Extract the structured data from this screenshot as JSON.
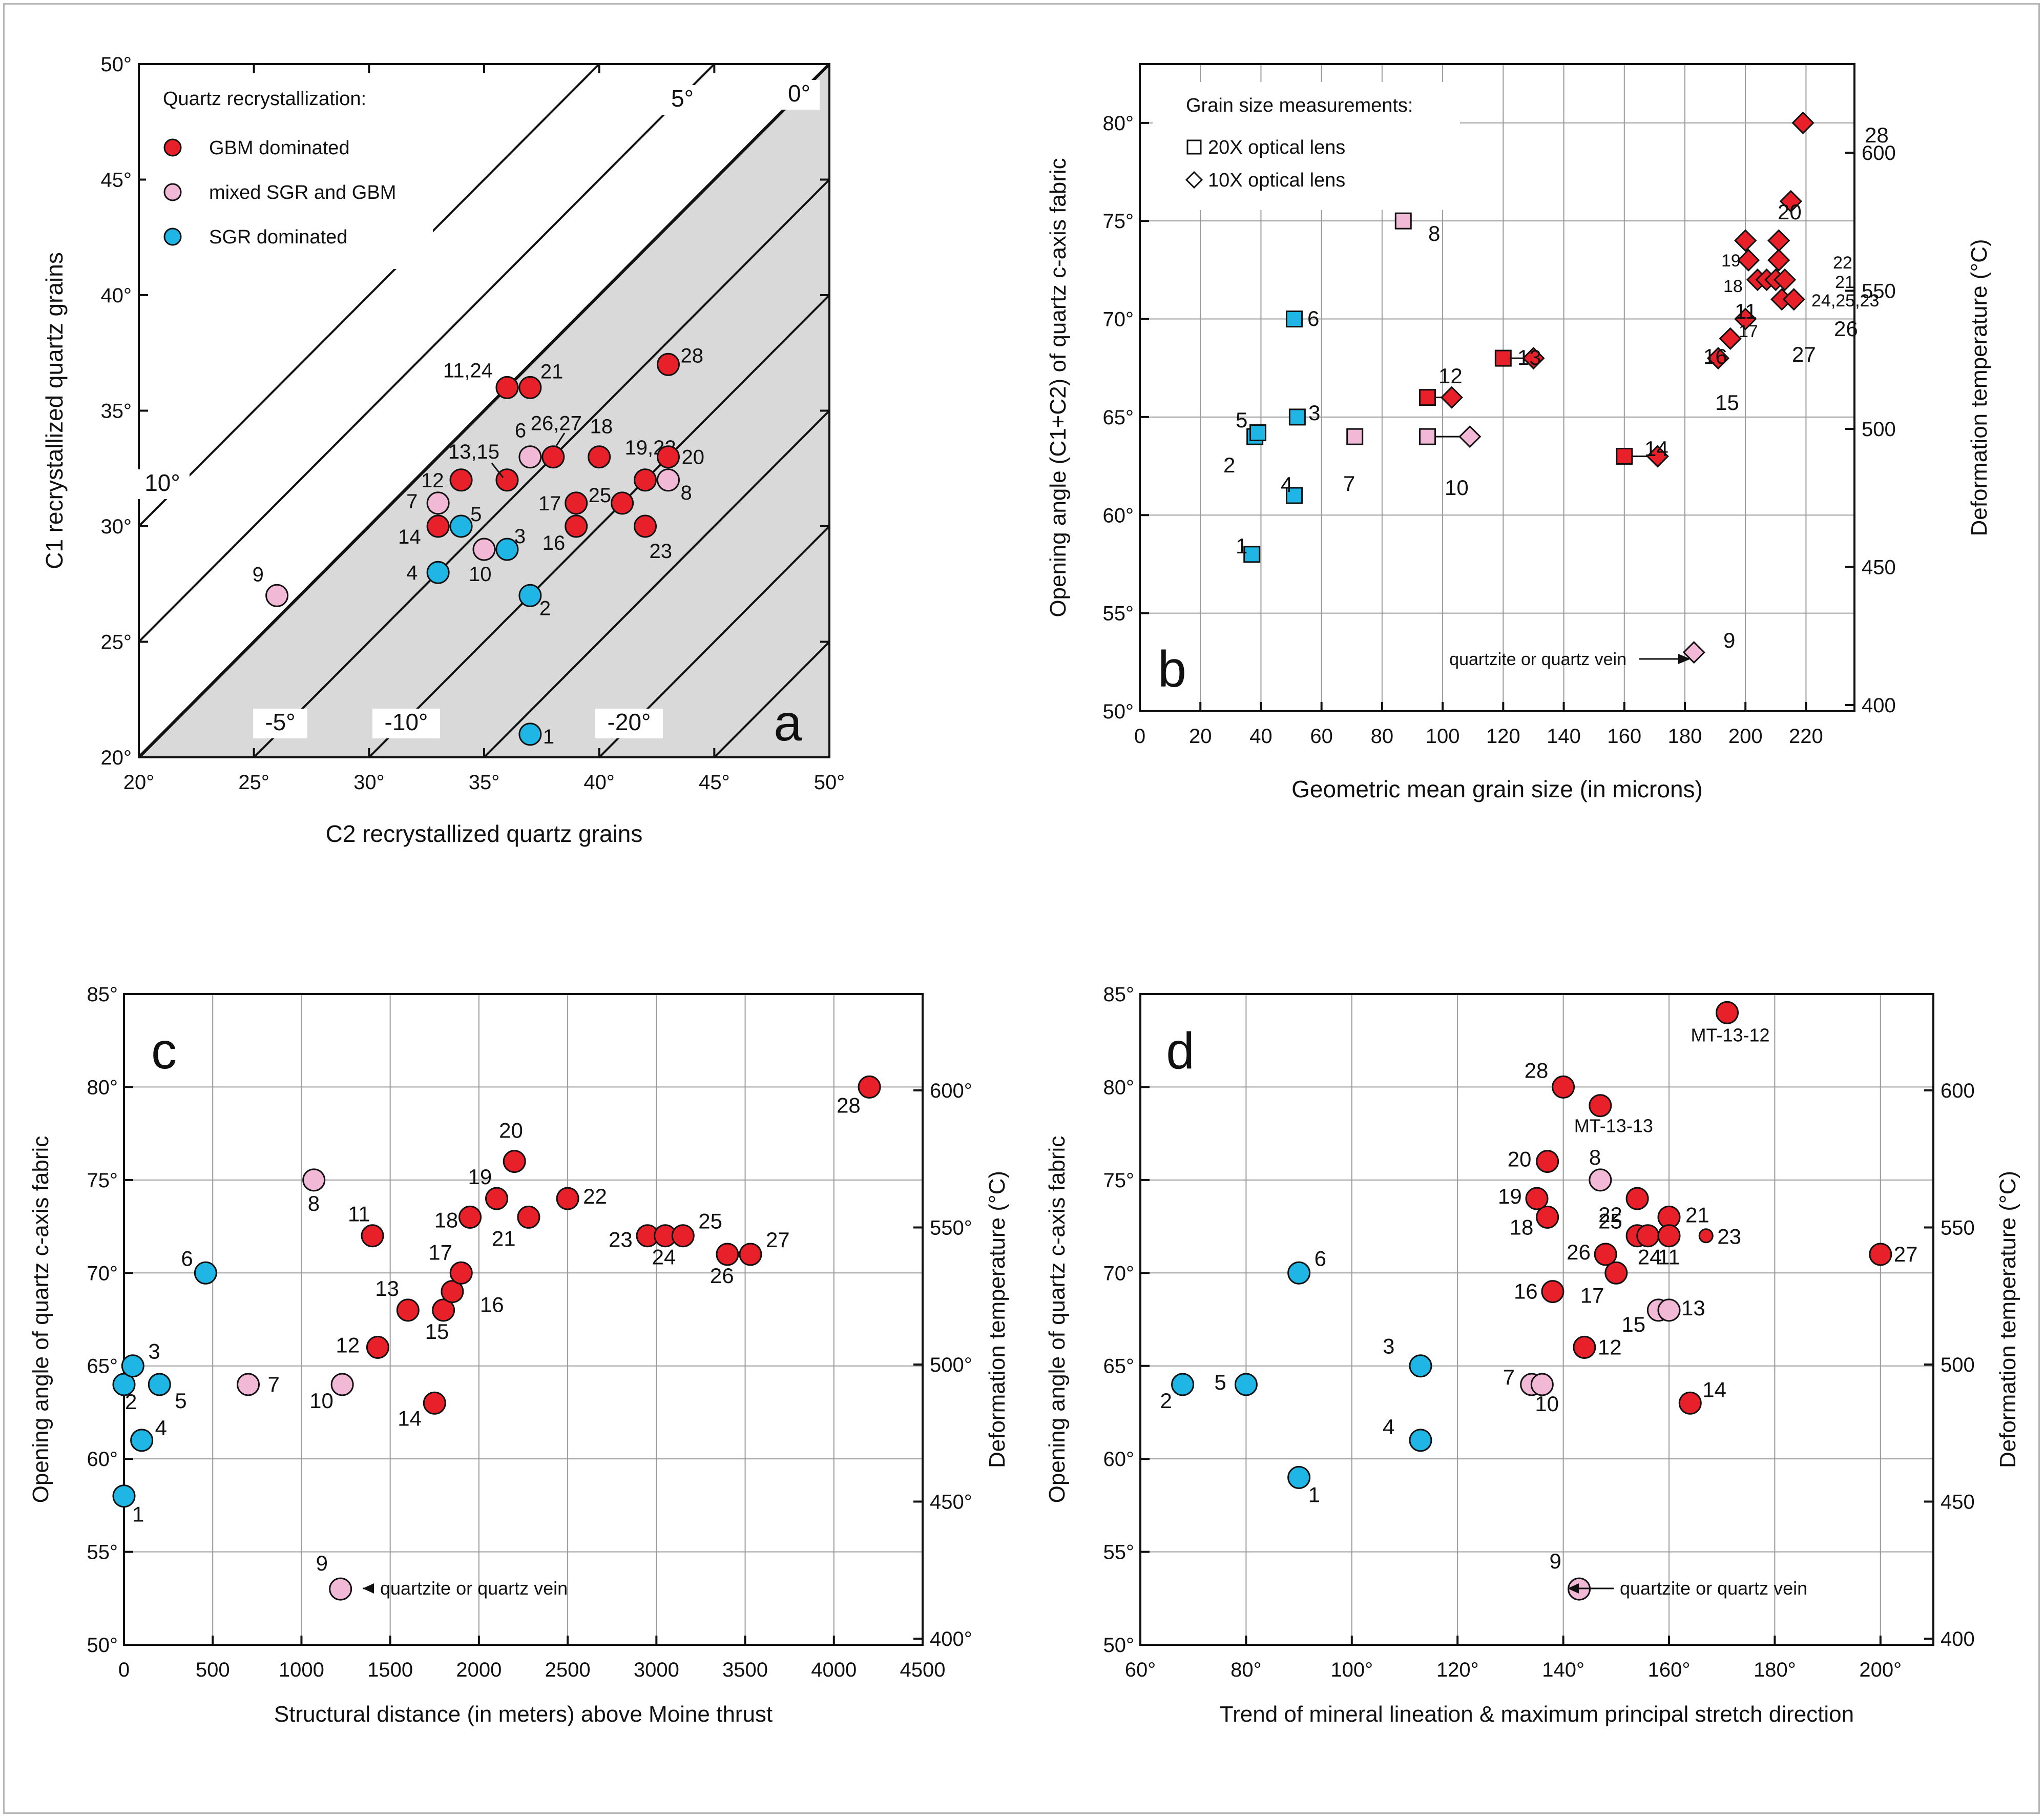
{
  "colors": {
    "gbm": "#e8202a",
    "mixed": "#f2b9d6",
    "sgr": "#1fb6e6",
    "grid": "#9a9a9a",
    "shade": "#d9d9d9",
    "label_blue": "#1f7fbf"
  },
  "chart_data": [
    {
      "id": "a",
      "type": "scatter",
      "panel_letter": "a",
      "title": "",
      "xlabel": "C2 recrystallized quartz grains",
      "ylabel": "C1 recrystallized quartz grains",
      "xlim": [
        20,
        50
      ],
      "ylim": [
        20,
        50
      ],
      "x_ticks": [
        20,
        25,
        30,
        35,
        40,
        45,
        50
      ],
      "y_ticks": [
        20,
        25,
        30,
        35,
        40,
        45,
        50
      ],
      "x_tick_labels": [
        "20°",
        "25°",
        "30°",
        "35°",
        "40°",
        "45°",
        "50°"
      ],
      "y_tick_labels": [
        "20°",
        "25°",
        "30°",
        "35°",
        "40°",
        "45°",
        "50°"
      ],
      "grid": false,
      "legend_title": "Quartz recrystallization:",
      "legend": [
        {
          "label": "GBM dominated",
          "cls": "gbm"
        },
        {
          "label": "mixed SGR and GBM",
          "cls": "mixed"
        },
        {
          "label": "SGR dominated",
          "cls": "sgr"
        }
      ],
      "diagonals": [
        {
          "offset": 10,
          "label": "10°"
        },
        {
          "offset": 5,
          "label": "5°"
        },
        {
          "offset": 0,
          "label": "0°"
        },
        {
          "offset": -5,
          "label": "-5°"
        },
        {
          "offset": -10,
          "label": "-10°"
        },
        {
          "offset": -15,
          "label": ""
        },
        {
          "offset": -20,
          "label": "-20°"
        },
        {
          "offset": -25,
          "label": ""
        }
      ],
      "points": [
        {
          "id": "1",
          "x": 37,
          "y": 21,
          "cls": "sgr"
        },
        {
          "id": "2",
          "x": 37,
          "y": 27,
          "cls": "sgr"
        },
        {
          "id": "3",
          "x": 36,
          "y": 29,
          "cls": "sgr"
        },
        {
          "id": "4",
          "x": 33,
          "y": 28,
          "cls": "sgr"
        },
        {
          "id": "5",
          "x": 34,
          "y": 30,
          "cls": "sgr"
        },
        {
          "id": "6",
          "x": 37,
          "y": 33,
          "cls": "mixed"
        },
        {
          "id": "7",
          "x": 33,
          "y": 31,
          "cls": "mixed"
        },
        {
          "id": "8",
          "x": 43,
          "y": 32,
          "cls": "mixed"
        },
        {
          "id": "9",
          "x": 26,
          "y": 27,
          "cls": "mixed"
        },
        {
          "id": "10",
          "x": 35,
          "y": 29,
          "cls": "mixed"
        },
        {
          "id": "11,24",
          "x": 36,
          "y": 36,
          "cls": "gbm"
        },
        {
          "id": "21",
          "x": 37,
          "y": 36,
          "cls": "gbm"
        },
        {
          "id": "12",
          "x": 34,
          "y": 32,
          "cls": "gbm"
        },
        {
          "id": "13,15",
          "x": 36,
          "y": 32,
          "cls": "gbm"
        },
        {
          "id": "14",
          "x": 33,
          "y": 30,
          "cls": "gbm"
        },
        {
          "id": "26,27",
          "x": 38,
          "y": 33,
          "cls": "gbm"
        },
        {
          "id": "18",
          "x": 40,
          "y": 33,
          "cls": "gbm"
        },
        {
          "id": "17",
          "x": 39,
          "y": 31,
          "cls": "gbm"
        },
        {
          "id": "16",
          "x": 39,
          "y": 30,
          "cls": "gbm"
        },
        {
          "id": "25",
          "x": 41,
          "y": 31,
          "cls": "gbm"
        },
        {
          "id": "19,22",
          "x": 42,
          "y": 32,
          "cls": "gbm"
        },
        {
          "id": "20",
          "x": 43,
          "y": 33,
          "cls": "gbm"
        },
        {
          "id": "23",
          "x": 42,
          "y": 30,
          "cls": "gbm"
        },
        {
          "id": "28",
          "x": 43,
          "y": 37,
          "cls": "gbm"
        }
      ]
    },
    {
      "id": "b",
      "type": "scatter",
      "panel_letter": "b",
      "title": "",
      "xlabel": "Geometric mean grain size (in microns)",
      "ylabel": "Opening angle (C1+C2) of quartz c-axis fabric",
      "y2label": "Deformation temperature (°C)",
      "xlim": [
        0,
        236
      ],
      "ylim": [
        50,
        83
      ],
      "x_ticks": [
        0,
        20,
        40,
        60,
        80,
        100,
        120,
        140,
        160,
        180,
        200,
        220
      ],
      "x_tick_labels": [
        "0",
        "20",
        "40",
        "60",
        "80",
        "100",
        "120",
        "140",
        "160",
        "180",
        "200",
        "220"
      ],
      "y_ticks": [
        50,
        55,
        60,
        65,
        70,
        75,
        80
      ],
      "y_tick_labels": [
        "50°",
        "55°",
        "60°",
        "65°",
        "70°",
        "75°",
        "80°"
      ],
      "y2_ticks": [
        400,
        450,
        500,
        550,
        600
      ],
      "y2_tick_labels": [
        "400",
        "450",
        "500",
        "550",
        "600"
      ],
      "grid": true,
      "legend_title": "Grain size measurements:",
      "legend": [
        {
          "label": "20X optical lens",
          "marker": "square"
        },
        {
          "label": "10X optical lens",
          "marker": "diamond"
        }
      ],
      "annotation": "quartzite or quartz vein",
      "squares": [
        {
          "id": "1",
          "x": 37,
          "y": 58,
          "cls": "sgr"
        },
        {
          "id": "2",
          "x": 38,
          "y": 64,
          "cls": "sgr"
        },
        {
          "id": "5",
          "x": 39,
          "y": 64.2,
          "cls": "sgr"
        },
        {
          "id": "3",
          "x": 52,
          "y": 65,
          "cls": "sgr"
        },
        {
          "id": "4",
          "x": 51,
          "y": 61,
          "cls": "sgr"
        },
        {
          "id": "6",
          "x": 51,
          "y": 70,
          "cls": "sgr"
        },
        {
          "id": "7",
          "x": 71,
          "y": 64,
          "cls": "mixed"
        },
        {
          "id": "8",
          "x": 87,
          "y": 75,
          "cls": "mixed"
        },
        {
          "id": "10",
          "x": 95,
          "y": 64,
          "cls": "mixed"
        },
        {
          "id": "12",
          "x": 95,
          "y": 66,
          "cls": "gbm"
        },
        {
          "id": "13",
          "x": 120,
          "y": 68,
          "cls": "gbm"
        },
        {
          "id": "14",
          "x": 160,
          "y": 63,
          "cls": "gbm"
        }
      ],
      "diamonds": [
        {
          "id": "10",
          "x": 109,
          "y": 64,
          "cls": "mixed"
        },
        {
          "id": "12",
          "x": 103,
          "y": 66,
          "cls": "gbm"
        },
        {
          "id": "13",
          "x": 130,
          "y": 68,
          "cls": "gbm"
        },
        {
          "id": "14",
          "x": 171,
          "y": 63,
          "cls": "gbm"
        },
        {
          "id": "9",
          "x": 183,
          "y": 53,
          "cls": "mixed"
        },
        {
          "id": "15",
          "x": 191,
          "y": 68,
          "cls": "gbm"
        },
        {
          "id": "16",
          "x": 195,
          "y": 69,
          "cls": "gbm"
        },
        {
          "id": "17",
          "x": 200,
          "y": 70,
          "cls": "gbm"
        },
        {
          "id": "19",
          "x": 200,
          "y": 74,
          "cls": "gbm"
        },
        {
          "id": "18",
          "x": 201,
          "y": 73,
          "cls": "gbm"
        },
        {
          "id": "11",
          "x": 204,
          "y": 72,
          "cls": "gbm"
        },
        {
          "id": "x1",
          "x": 207,
          "y": 72,
          "cls": "gbm"
        },
        {
          "id": "x2",
          "x": 210,
          "y": 72,
          "cls": "gbm"
        },
        {
          "id": "22",
          "x": 211,
          "y": 74,
          "cls": "gbm"
        },
        {
          "id": "21",
          "x": 211,
          "y": 73,
          "cls": "gbm"
        },
        {
          "id": "24,25,23",
          "x": 213,
          "y": 72,
          "cls": "gbm"
        },
        {
          "id": "27",
          "x": 212,
          "y": 71,
          "cls": "gbm"
        },
        {
          "id": "26",
          "x": 216,
          "y": 71,
          "cls": "gbm"
        },
        {
          "id": "20",
          "x": 215,
          "y": 76,
          "cls": "gbm"
        },
        {
          "id": "28",
          "x": 219,
          "y": 80,
          "cls": "gbm"
        }
      ],
      "connectors": [
        {
          "from": [
            95,
            64
          ],
          "to": [
            109,
            64
          ]
        },
        {
          "from": [
            95,
            66
          ],
          "to": [
            103,
            66
          ]
        },
        {
          "from": [
            120,
            68
          ],
          "to": [
            130,
            68
          ]
        },
        {
          "from": [
            160,
            63
          ],
          "to": [
            171,
            63
          ]
        }
      ]
    },
    {
      "id": "c",
      "type": "scatter",
      "panel_letter": "c",
      "title": "",
      "xlabel": "Structural distance (in meters) above Moine thrust",
      "ylabel": "Opening angle of quartz c-axis fabric",
      "y2label": "Deformation temperature (°C)",
      "xlim": [
        0,
        4500
      ],
      "ylim": [
        50,
        85
      ],
      "x_ticks": [
        0,
        500,
        1000,
        1500,
        2000,
        2500,
        3000,
        3500,
        4000,
        4500
      ],
      "x_tick_labels": [
        "0",
        "500",
        "1000",
        "1500",
        "2000",
        "2500",
        "3000",
        "3500",
        "4000",
        "4500"
      ],
      "y_ticks": [
        50,
        55,
        60,
        65,
        70,
        75,
        80,
        85
      ],
      "y_tick_labels": [
        "50°",
        "55°",
        "60°",
        "65°",
        "70°",
        "75°",
        "80°",
        "85°"
      ],
      "y2_ticks": [
        400,
        450,
        500,
        550,
        600
      ],
      "y2_tick_labels": [
        "400°",
        "450°",
        "500°",
        "550°",
        "600°"
      ],
      "grid": true,
      "annotation": "quartzite or quartz vein",
      "points": [
        {
          "id": "1",
          "x": 0,
          "y": 58,
          "cls": "sgr"
        },
        {
          "id": "2",
          "x": 0,
          "y": 64,
          "cls": "sgr"
        },
        {
          "id": "3",
          "x": 50,
          "y": 65,
          "cls": "sgr"
        },
        {
          "id": "4",
          "x": 100,
          "y": 61,
          "cls": "sgr"
        },
        {
          "id": "5",
          "x": 200,
          "y": 64,
          "cls": "sgr"
        },
        {
          "id": "6",
          "x": 460,
          "y": 70,
          "cls": "sgr"
        },
        {
          "id": "7",
          "x": 700,
          "y": 64,
          "cls": "mixed"
        },
        {
          "id": "8",
          "x": 1070,
          "y": 75,
          "cls": "mixed"
        },
        {
          "id": "9",
          "x": 1220,
          "y": 53,
          "cls": "mixed"
        },
        {
          "id": "10",
          "x": 1230,
          "y": 64,
          "cls": "mixed"
        },
        {
          "id": "11",
          "x": 1400,
          "y": 72,
          "cls": "gbm"
        },
        {
          "id": "12",
          "x": 1430,
          "y": 66,
          "cls": "gbm"
        },
        {
          "id": "13",
          "x": 1600,
          "y": 68,
          "cls": "gbm"
        },
        {
          "id": "14",
          "x": 1750,
          "y": 63,
          "cls": "gbm"
        },
        {
          "id": "15",
          "x": 1800,
          "y": 68,
          "cls": "gbm"
        },
        {
          "id": "16",
          "x": 1850,
          "y": 69,
          "cls": "gbm"
        },
        {
          "id": "17",
          "x": 1900,
          "y": 70,
          "cls": "gbm"
        },
        {
          "id": "18",
          "x": 1950,
          "y": 73,
          "cls": "gbm"
        },
        {
          "id": "19",
          "x": 2100,
          "y": 74,
          "cls": "gbm"
        },
        {
          "id": "20",
          "x": 2200,
          "y": 76,
          "cls": "gbm"
        },
        {
          "id": "21",
          "x": 2280,
          "y": 73,
          "cls": "gbm"
        },
        {
          "id": "22",
          "x": 2500,
          "y": 74,
          "cls": "gbm"
        },
        {
          "id": "23",
          "x": 2950,
          "y": 72,
          "cls": "gbm"
        },
        {
          "id": "24",
          "x": 3050,
          "y": 72,
          "cls": "gbm"
        },
        {
          "id": "25",
          "x": 3150,
          "y": 72,
          "cls": "gbm"
        },
        {
          "id": "26",
          "x": 3400,
          "y": 71,
          "cls": "gbm"
        },
        {
          "id": "27",
          "x": 3530,
          "y": 71,
          "cls": "gbm"
        },
        {
          "id": "28",
          "x": 4200,
          "y": 80,
          "cls": "gbm"
        }
      ]
    },
    {
      "id": "d",
      "type": "scatter",
      "panel_letter": "d",
      "title": "",
      "xlabel": "Trend of mineral lineation & maximum principal stretch direction",
      "ylabel": "Opening angle of quartz c-axis fabric",
      "y2label": "Deformation temperature (°C)",
      "xlim": [
        60,
        210
      ],
      "ylim": [
        50,
        85
      ],
      "x_ticks": [
        60,
        80,
        100,
        120,
        140,
        160,
        180,
        200
      ],
      "x_tick_labels": [
        "60°",
        "80°",
        "100°",
        "120°",
        "140°",
        "160°",
        "180°",
        "200°"
      ],
      "y_ticks": [
        50,
        55,
        60,
        65,
        70,
        75,
        80,
        85
      ],
      "y_tick_labels": [
        "50°",
        "55°",
        "60°",
        "65°",
        "70°",
        "75°",
        "80°",
        "85°"
      ],
      "y2_ticks": [
        400,
        450,
        500,
        550,
        600
      ],
      "y2_tick_labels": [
        "400",
        "450",
        "500",
        "550",
        "600"
      ],
      "grid": true,
      "annotation": "quartzite or quartz vein",
      "points": [
        {
          "id": "1",
          "x": 90,
          "y": 59,
          "cls": "sgr"
        },
        {
          "id": "2",
          "x": 68,
          "y": 64,
          "cls": "sgr"
        },
        {
          "id": "3",
          "x": 113,
          "y": 65,
          "cls": "sgr"
        },
        {
          "id": "4",
          "x": 113,
          "y": 61,
          "cls": "sgr"
        },
        {
          "id": "5",
          "x": 80,
          "y": 64,
          "cls": "sgr"
        },
        {
          "id": "6",
          "x": 90,
          "y": 70,
          "cls": "sgr"
        },
        {
          "id": "7",
          "x": 134,
          "y": 64,
          "cls": "mixed"
        },
        {
          "id": "10",
          "x": 136,
          "y": 64,
          "cls": "mixed"
        },
        {
          "id": "8",
          "x": 147,
          "y": 75,
          "cls": "mixed"
        },
        {
          "id": "9",
          "x": 143,
          "y": 53,
          "cls": "mixed"
        },
        {
          "id": "15",
          "x": 158,
          "y": 68,
          "cls": "mixed"
        },
        {
          "id": "13",
          "x": 160,
          "y": 68,
          "cls": "mixed"
        },
        {
          "id": "28",
          "x": 140,
          "y": 80,
          "cls": "gbm"
        },
        {
          "id": "MT-13-13",
          "x": 147,
          "y": 79,
          "cls": "gbm"
        },
        {
          "id": "MT-13-12",
          "x": 171,
          "y": 84,
          "cls": "gbm"
        },
        {
          "id": "20",
          "x": 137,
          "y": 76,
          "cls": "gbm"
        },
        {
          "id": "19",
          "x": 135,
          "y": 74,
          "cls": "gbm"
        },
        {
          "id": "18",
          "x": 137,
          "y": 73,
          "cls": "gbm"
        },
        {
          "id": "22",
          "x": 154,
          "y": 74,
          "cls": "gbm"
        },
        {
          "id": "21",
          "x": 160,
          "y": 73,
          "cls": "gbm"
        },
        {
          "id": "25",
          "x": 154,
          "y": 72,
          "cls": "gbm"
        },
        {
          "id": "24",
          "x": 156,
          "y": 72,
          "cls": "gbm"
        },
        {
          "id": "11",
          "x": 160,
          "y": 72,
          "cls": "gbm"
        },
        {
          "id": "23",
          "x": 167,
          "y": 72,
          "cls": "gbm",
          "small": true
        },
        {
          "id": "26",
          "x": 148,
          "y": 71,
          "cls": "gbm"
        },
        {
          "id": "17",
          "x": 150,
          "y": 70,
          "cls": "gbm"
        },
        {
          "id": "16",
          "x": 138,
          "y": 69,
          "cls": "gbm"
        },
        {
          "id": "12",
          "x": 144,
          "y": 66,
          "cls": "gbm"
        },
        {
          "id": "14",
          "x": 164,
          "y": 63,
          "cls": "gbm"
        },
        {
          "id": "27",
          "x": 200,
          "y": 71,
          "cls": "gbm"
        }
      ]
    }
  ]
}
